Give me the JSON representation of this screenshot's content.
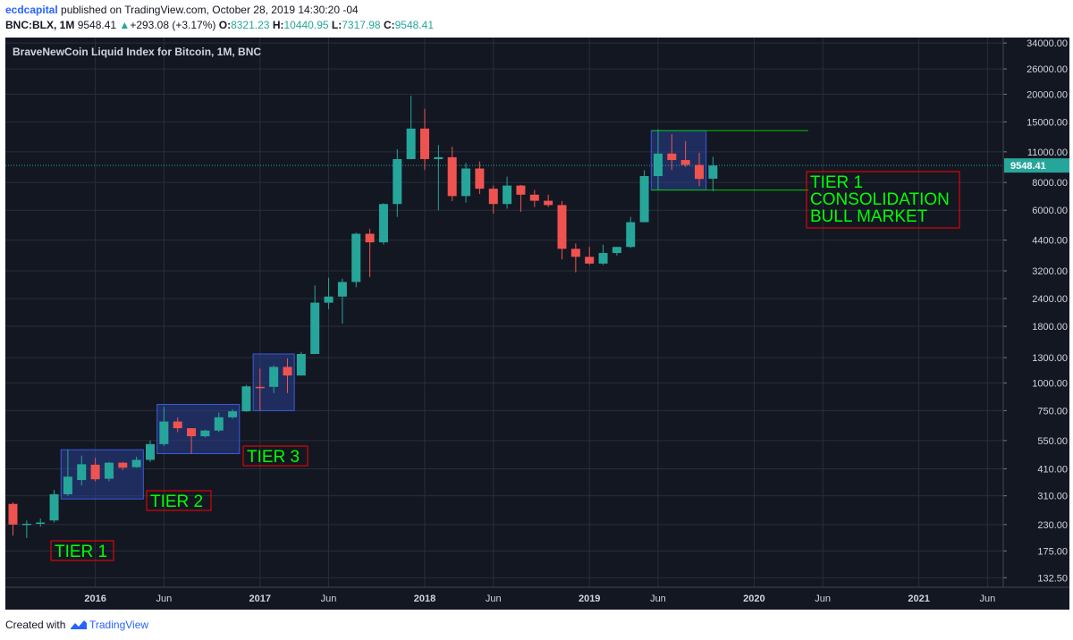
{
  "header": {
    "author": "ecdcapital",
    "published": " published on TradingView.com, October 28, 2019 14:30:20 -04",
    "symbol": "BNC:BLX, 1M",
    "last": "9548.41",
    "change_arrow": "▲",
    "change": "+293.08 (+3.17%)",
    "o_label": "O:",
    "o_value": "8321.23",
    "h_label": "H:",
    "h_value": "10440.95",
    "l_label": "L:",
    "l_value": "7317.98",
    "c_label": "C:",
    "c_value": "9548.41"
  },
  "footer": {
    "created_with": "Created with",
    "brand": "TradingView"
  },
  "colors": {
    "background": "#131722",
    "grid": "#2a2e39",
    "up": "#26a69a",
    "down": "#ef5350",
    "box_fill": "#2a3f8f",
    "annotation_text": "#00ff00",
    "annotation_border": "#ff0000",
    "price_line": "#26a69a"
  },
  "chart_data": {
    "type": "candlestick",
    "title": "BraveNewCoin Liquid Index for Bitcoin, 1M, BNC",
    "price_scale": "log",
    "ylim": [
      120,
      36000
    ],
    "y_ticks": [
      "132.50",
      "175.00",
      "230.00",
      "310.00",
      "410.00",
      "550.00",
      "750.00",
      "1000.00",
      "1300.00",
      "1800.00",
      "2400.00",
      "3200.00",
      "4400.00",
      "6000.00",
      "8000.00",
      "11000.00",
      "15000.00",
      "20000.00",
      "26000.00",
      "34000.00"
    ],
    "x_ticks": [
      {
        "label": "2016",
        "date": "2016-01",
        "bold": true
      },
      {
        "label": "Jun",
        "date": "2016-06",
        "bold": false
      },
      {
        "label": "2017",
        "date": "2017-01",
        "bold": true
      },
      {
        "label": "Jun",
        "date": "2017-06",
        "bold": false
      },
      {
        "label": "2018",
        "date": "2018-01",
        "bold": true
      },
      {
        "label": "Jun",
        "date": "2018-06",
        "bold": false
      },
      {
        "label": "2019",
        "date": "2019-01",
        "bold": true
      },
      {
        "label": "Jun",
        "date": "2019-06",
        "bold": false
      },
      {
        "label": "2020",
        "date": "2020-01",
        "bold": true
      },
      {
        "label": "Jun",
        "date": "2020-06",
        "bold": false
      },
      {
        "label": "2021",
        "date": "2021-01",
        "bold": true
      },
      {
        "label": "Jun",
        "date": "2021-06",
        "bold": false
      }
    ],
    "last_price": 9548.41,
    "last_price_label": "9548.41",
    "candles": [
      {
        "date": "2015-07",
        "o": 285,
        "h": 290,
        "l": 205,
        "c": 230
      },
      {
        "date": "2015-08",
        "o": 230,
        "h": 240,
        "l": 200,
        "c": 232
      },
      {
        "date": "2015-09",
        "o": 232,
        "h": 245,
        "l": 225,
        "c": 235
      },
      {
        "date": "2015-10",
        "o": 240,
        "h": 330,
        "l": 235,
        "c": 315
      },
      {
        "date": "2015-11",
        "o": 315,
        "h": 500,
        "l": 310,
        "c": 378
      },
      {
        "date": "2015-12",
        "o": 365,
        "h": 470,
        "l": 345,
        "c": 430
      },
      {
        "date": "2016-01",
        "o": 428,
        "h": 460,
        "l": 360,
        "c": 368
      },
      {
        "date": "2016-02",
        "o": 370,
        "h": 440,
        "l": 360,
        "c": 437
      },
      {
        "date": "2016-03",
        "o": 437,
        "h": 440,
        "l": 405,
        "c": 415
      },
      {
        "date": "2016-04",
        "o": 417,
        "h": 465,
        "l": 415,
        "c": 450
      },
      {
        "date": "2016-05",
        "o": 450,
        "h": 550,
        "l": 440,
        "c": 530
      },
      {
        "date": "2016-06",
        "o": 530,
        "h": 780,
        "l": 520,
        "c": 670
      },
      {
        "date": "2016-07",
        "o": 670,
        "h": 700,
        "l": 600,
        "c": 625
      },
      {
        "date": "2016-08",
        "o": 625,
        "h": 625,
        "l": 480,
        "c": 575
      },
      {
        "date": "2016-09",
        "o": 575,
        "h": 615,
        "l": 568,
        "c": 610
      },
      {
        "date": "2016-10",
        "o": 610,
        "h": 735,
        "l": 600,
        "c": 700
      },
      {
        "date": "2016-11",
        "o": 700,
        "h": 760,
        "l": 690,
        "c": 745
      },
      {
        "date": "2016-12",
        "o": 745,
        "h": 980,
        "l": 740,
        "c": 965
      },
      {
        "date": "2017-01",
        "o": 960,
        "h": 1160,
        "l": 750,
        "c": 950
      },
      {
        "date": "2017-02",
        "o": 960,
        "h": 1200,
        "l": 900,
        "c": 1180
      },
      {
        "date": "2017-03",
        "o": 1180,
        "h": 1290,
        "l": 900,
        "c": 1080
      },
      {
        "date": "2017-04",
        "o": 1080,
        "h": 1380,
        "l": 1080,
        "c": 1350
      },
      {
        "date": "2017-05",
        "o": 1350,
        "h": 2750,
        "l": 1350,
        "c": 2300
      },
      {
        "date": "2017-06",
        "o": 2300,
        "h": 2980,
        "l": 2150,
        "c": 2450
      },
      {
        "date": "2017-07",
        "o": 2450,
        "h": 2950,
        "l": 1850,
        "c": 2850
      },
      {
        "date": "2017-08",
        "o": 2850,
        "h": 4750,
        "l": 2700,
        "c": 4700
      },
      {
        "date": "2017-09",
        "o": 4700,
        "h": 4950,
        "l": 3000,
        "c": 4300
      },
      {
        "date": "2017-10",
        "o": 4300,
        "h": 6450,
        "l": 4200,
        "c": 6400
      },
      {
        "date": "2017-11",
        "o": 6400,
        "h": 11300,
        "l": 5600,
        "c": 10200
      },
      {
        "date": "2017-12",
        "o": 10200,
        "h": 19700,
        "l": 10200,
        "c": 14000
      },
      {
        "date": "2018-01",
        "o": 14000,
        "h": 17200,
        "l": 9100,
        "c": 10200
      },
      {
        "date": "2018-02",
        "o": 10200,
        "h": 11800,
        "l": 6000,
        "c": 10400
      },
      {
        "date": "2018-03",
        "o": 10400,
        "h": 11600,
        "l": 6600,
        "c": 6950
      },
      {
        "date": "2018-04",
        "o": 6950,
        "h": 9800,
        "l": 6500,
        "c": 9250
      },
      {
        "date": "2018-05",
        "o": 9250,
        "h": 9950,
        "l": 7100,
        "c": 7500
      },
      {
        "date": "2018-06",
        "o": 7500,
        "h": 7750,
        "l": 5800,
        "c": 6400
      },
      {
        "date": "2018-07",
        "o": 6400,
        "h": 8500,
        "l": 6100,
        "c": 7750
      },
      {
        "date": "2018-08",
        "o": 7750,
        "h": 7800,
        "l": 5900,
        "c": 7050
      },
      {
        "date": "2018-09",
        "o": 7050,
        "h": 7400,
        "l": 6200,
        "c": 6620
      },
      {
        "date": "2018-10",
        "o": 6620,
        "h": 7050,
        "l": 6200,
        "c": 6330
      },
      {
        "date": "2018-11",
        "o": 6330,
        "h": 6600,
        "l": 3600,
        "c": 4020
      },
      {
        "date": "2018-12",
        "o": 4020,
        "h": 4250,
        "l": 3150,
        "c": 3700
      },
      {
        "date": "2019-01",
        "o": 3700,
        "h": 4100,
        "l": 3400,
        "c": 3450
      },
      {
        "date": "2019-02",
        "o": 3450,
        "h": 4200,
        "l": 3400,
        "c": 3850
      },
      {
        "date": "2019-03",
        "o": 3850,
        "h": 4100,
        "l": 3750,
        "c": 4100
      },
      {
        "date": "2019-04",
        "o": 4100,
        "h": 5600,
        "l": 4050,
        "c": 5300
      },
      {
        "date": "2019-05",
        "o": 5300,
        "h": 9100,
        "l": 5300,
        "c": 8550
      },
      {
        "date": "2019-06",
        "o": 8550,
        "h": 13900,
        "l": 7400,
        "c": 10800
      },
      {
        "date": "2019-07",
        "o": 10800,
        "h": 13200,
        "l": 9100,
        "c": 10100
      },
      {
        "date": "2019-08",
        "o": 10100,
        "h": 12300,
        "l": 9400,
        "c": 9600
      },
      {
        "date": "2019-09",
        "o": 9600,
        "h": 10900,
        "l": 7700,
        "c": 8300
      },
      {
        "date": "2019-10",
        "o": 8321.23,
        "h": 10440.95,
        "l": 7317.98,
        "c": 9548.41
      }
    ],
    "annotations": [
      {
        "text_lines": [
          "TIER 1"
        ],
        "box": {
          "from": "2015-11",
          "to": "2016-04",
          "low": 300,
          "high": 500
        }
      },
      {
        "text_lines": [
          "TIER 2"
        ],
        "box": {
          "from": "2016-06",
          "to": "2016-11",
          "low": 480,
          "high": 800
        }
      },
      {
        "text_lines": [
          "TIER 3"
        ],
        "box": {
          "from": "2017-01",
          "to": "2017-03",
          "low": 750,
          "high": 1350
        }
      },
      {
        "text_lines": [
          "TIER 1",
          "CONSOLIDATION",
          "BULL MARKET"
        ],
        "box": {
          "from": "2019-06",
          "to": "2019-09",
          "low": 7400,
          "high": 13700
        }
      }
    ]
  }
}
